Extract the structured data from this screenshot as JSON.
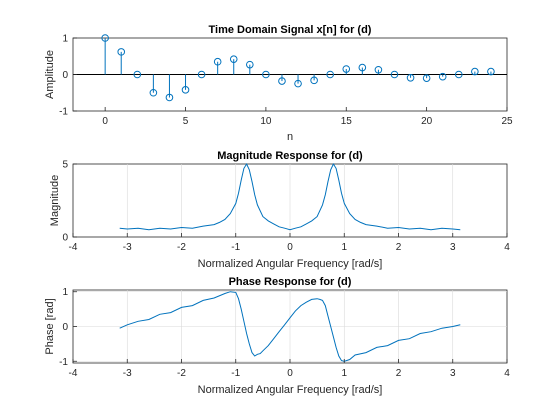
{
  "colors": {
    "series": "#0072BD",
    "zero_line": "#000000",
    "axes": "#262626",
    "grid": "#d9d9d9"
  },
  "chart_data": [
    {
      "type": "stem",
      "title": "Time Domain Signal x[n] for (d)",
      "xlabel": "n",
      "ylabel": "Amplitude",
      "xlim": [
        -2,
        25
      ],
      "ylim": [
        -1,
        1
      ],
      "xticks": [
        0,
        5,
        10,
        15,
        20,
        25
      ],
      "yticks": [
        -1,
        0,
        1
      ],
      "grid": false,
      "baseline": 0,
      "x": [
        0,
        1,
        2,
        3,
        4,
        5,
        6,
        7,
        8,
        9,
        10,
        11,
        12,
        13,
        14,
        15,
        16,
        17,
        18,
        19,
        20,
        21,
        22,
        23,
        24
      ],
      "series": [
        {
          "values": [
            1.0,
            0.62,
            0.0,
            -0.5,
            -0.63,
            -0.42,
            0.0,
            0.35,
            0.42,
            0.27,
            0.0,
            -0.18,
            -0.25,
            -0.16,
            0.0,
            0.15,
            0.19,
            0.13,
            0.0,
            -0.09,
            -0.1,
            -0.06,
            0.0,
            0.08,
            0.08
          ]
        }
      ]
    },
    {
      "type": "line",
      "title": "Magnitude Response for (d)",
      "xlabel": "Normalized Angular Frequency [rad/s]",
      "ylabel": "Magnitude",
      "xlim": [
        -4,
        4
      ],
      "ylim": [
        0,
        5
      ],
      "xticks": [
        -4,
        -3,
        -2,
        -1,
        0,
        1,
        2,
        3,
        4
      ],
      "yticks": [
        0,
        5
      ],
      "grid": true,
      "x": [
        -3.14,
        -3.0,
        -2.8,
        -2.6,
        -2.4,
        -2.2,
        -2.0,
        -1.8,
        -1.6,
        -1.4,
        -1.3,
        -1.2,
        -1.1,
        -1.0,
        -0.95,
        -0.9,
        -0.85,
        -0.8,
        -0.75,
        -0.7,
        -0.65,
        -0.6,
        -0.5,
        -0.4,
        -0.3,
        -0.2,
        -0.1,
        0.0,
        0.1,
        0.2,
        0.3,
        0.4,
        0.5,
        0.6,
        0.65,
        0.7,
        0.75,
        0.8,
        0.85,
        0.9,
        0.95,
        1.0,
        1.1,
        1.2,
        1.3,
        1.4,
        1.6,
        1.8,
        2.0,
        2.2,
        2.4,
        2.6,
        2.8,
        3.0,
        3.14
      ],
      "series": [
        {
          "values": [
            0.6,
            0.55,
            0.6,
            0.5,
            0.6,
            0.55,
            0.65,
            0.6,
            0.75,
            0.85,
            1.0,
            1.2,
            1.6,
            2.3,
            3.0,
            3.9,
            4.7,
            5.0,
            4.6,
            3.8,
            2.9,
            2.2,
            1.4,
            1.1,
            0.9,
            0.7,
            0.6,
            0.5,
            0.6,
            0.7,
            0.9,
            1.1,
            1.4,
            2.2,
            2.9,
            3.8,
            4.6,
            5.0,
            4.7,
            3.9,
            3.0,
            2.3,
            1.6,
            1.2,
            1.0,
            0.85,
            0.75,
            0.6,
            0.65,
            0.55,
            0.6,
            0.5,
            0.6,
            0.55,
            0.5
          ]
        }
      ]
    },
    {
      "type": "line",
      "title": "Phase Response for (d)",
      "xlabel": "Normalized Angular Frequency [rad/s]",
      "ylabel": "Phase [rad]",
      "xlim": [
        -4,
        4
      ],
      "ylim": [
        -1.05,
        1.05
      ],
      "xticks": [
        -4,
        -3,
        -2,
        -1,
        0,
        1,
        2,
        3,
        4
      ],
      "yticks": [
        -1,
        0,
        1
      ],
      "grid": true,
      "x": [
        -3.14,
        -3.0,
        -2.8,
        -2.6,
        -2.4,
        -2.2,
        -2.0,
        -1.8,
        -1.6,
        -1.4,
        -1.2,
        -1.1,
        -1.0,
        -0.95,
        -0.9,
        -0.85,
        -0.8,
        -0.75,
        -0.7,
        -0.65,
        -0.6,
        -0.55,
        -0.5,
        -0.4,
        -0.3,
        -0.2,
        -0.1,
        0.0,
        0.1,
        0.2,
        0.3,
        0.4,
        0.5,
        0.55,
        0.6,
        0.65,
        0.7,
        0.75,
        0.8,
        0.85,
        0.9,
        0.95,
        1.0,
        1.1,
        1.2,
        1.4,
        1.6,
        1.8,
        2.0,
        2.2,
        2.4,
        2.6,
        2.8,
        3.0,
        3.14
      ],
      "series": [
        {
          "values": [
            -0.05,
            0.05,
            0.15,
            0.2,
            0.35,
            0.4,
            0.55,
            0.6,
            0.75,
            0.82,
            0.95,
            1.0,
            0.98,
            0.8,
            0.5,
            0.15,
            -0.2,
            -0.5,
            -0.75,
            -0.85,
            -0.8,
            -0.78,
            -0.7,
            -0.55,
            -0.35,
            -0.15,
            0.05,
            0.25,
            0.45,
            0.6,
            0.7,
            0.78,
            0.8,
            0.78,
            0.75,
            0.6,
            0.3,
            0.0,
            -0.3,
            -0.6,
            -0.85,
            -0.98,
            -1.0,
            -0.95,
            -0.82,
            -0.75,
            -0.6,
            -0.55,
            -0.4,
            -0.35,
            -0.2,
            -0.15,
            -0.05,
            0.0,
            0.05
          ]
        }
      ]
    }
  ]
}
